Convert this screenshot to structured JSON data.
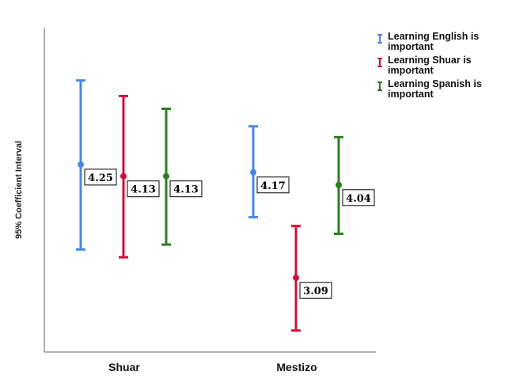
{
  "chart_data": {
    "type": "errorbar",
    "title": "",
    "xlabel": "",
    "ylabel": "95% Coefficient Interval",
    "categories": [
      "Shuar",
      "Mestizo"
    ],
    "ylim": [
      2.33,
      5.65
    ],
    "grid": false,
    "legend_position": "top-right",
    "series": [
      {
        "name": "Learning English is important",
        "color": "#4a86e8",
        "means": [
          4.25,
          4.17
        ],
        "lower": [
          3.38,
          3.71
        ],
        "upper": [
          5.11,
          4.64
        ],
        "labels": [
          "4.25",
          "4.17"
        ]
      },
      {
        "name": "Learning Shuar is important",
        "color": "#d0103a",
        "means": [
          4.13,
          3.09
        ],
        "lower": [
          3.3,
          2.55
        ],
        "upper": [
          4.95,
          3.62
        ],
        "labels": [
          "4.13",
          "3.09"
        ]
      },
      {
        "name": "Learning Spanish is important",
        "color": "#2e7d22",
        "means": [
          4.13,
          4.04
        ],
        "lower": [
          3.43,
          3.54
        ],
        "upper": [
          4.82,
          4.53
        ],
        "labels": [
          "4.13",
          "4.04"
        ]
      }
    ]
  }
}
